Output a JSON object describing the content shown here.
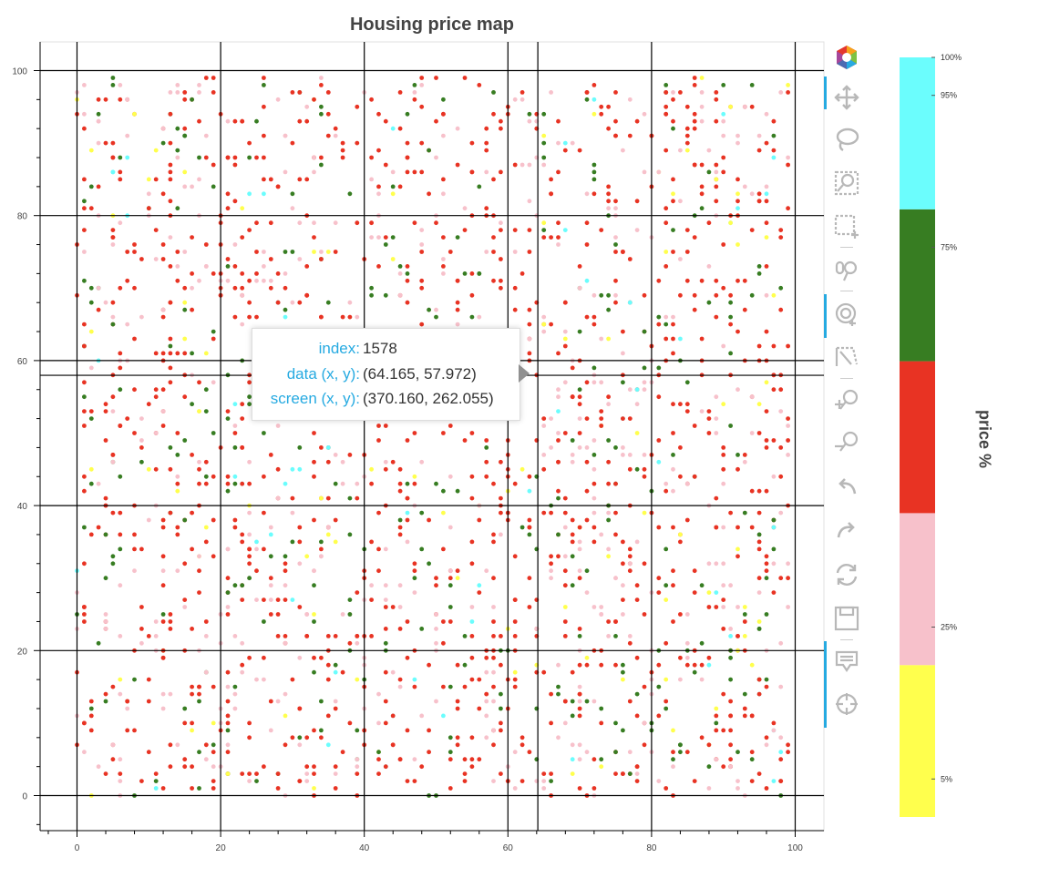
{
  "chart_data": {
    "type": "scatter",
    "title": "Housing price map",
    "xlabel": "",
    "ylabel": "",
    "xlim": [
      -4,
      104
    ],
    "ylim": [
      -5,
      104
    ],
    "x_ticks": [
      0,
      20,
      40,
      60,
      80,
      100
    ],
    "y_ticks": [
      0,
      20,
      40,
      60,
      80,
      100
    ],
    "grid": true,
    "crosshair": {
      "x": 64.165,
      "y": 57.972
    },
    "colorbar": {
      "title": "price %",
      "bands": [
        {
          "from": 0,
          "to": 20,
          "color": "#ffff4d"
        },
        {
          "from": 20,
          "to": 40,
          "color": "#f7c1cb"
        },
        {
          "from": 40,
          "to": 60,
          "color": "#e83323"
        },
        {
          "from": 60,
          "to": 80,
          "color": "#377d22"
        },
        {
          "from": 80,
          "to": 100,
          "color": "#6bfdfd"
        }
      ],
      "ticks": [
        {
          "value": 100,
          "label": "100%"
        },
        {
          "value": 95,
          "label": "95%"
        },
        {
          "value": 75,
          "label": "75%"
        },
        {
          "value": 25,
          "label": "25%"
        },
        {
          "value": 5,
          "label": "5%"
        }
      ]
    },
    "series": [
      {
        "color": "#e83323",
        "share": 0.52
      },
      {
        "color": "#f7c1cb",
        "share": 0.26
      },
      {
        "color": "#377d22",
        "share": 0.15
      },
      {
        "color": "#ffff4d",
        "share": 0.04
      },
      {
        "color": "#6bfdfd",
        "share": 0.03
      }
    ],
    "point_grid_step": 1,
    "point_count": 2100
  },
  "tooltip": {
    "rows": [
      {
        "label": "index:",
        "value": "1578"
      },
      {
        "label": "data (x, y):",
        "value": "(64.165, 57.972)"
      },
      {
        "label": "screen (x, y):",
        "value": "(370.160, 262.055)"
      }
    ]
  },
  "toolbar": {
    "tools": [
      "bokeh-logo-icon",
      "pan-icon",
      "lasso-select-icon",
      "box-zoom-icon",
      "box-select-icon",
      "wheel-zoom-icon",
      "tap-icon",
      "poly-select-icon",
      "zoom-in-icon",
      "zoom-out-icon",
      "undo-icon",
      "redo-icon",
      "reset-icon",
      "save-icon",
      "hover-icon",
      "crosshair-icon"
    ]
  },
  "colors": {
    "accent": "#26aae1",
    "axis": "#000000",
    "tick_text": "#444444"
  }
}
